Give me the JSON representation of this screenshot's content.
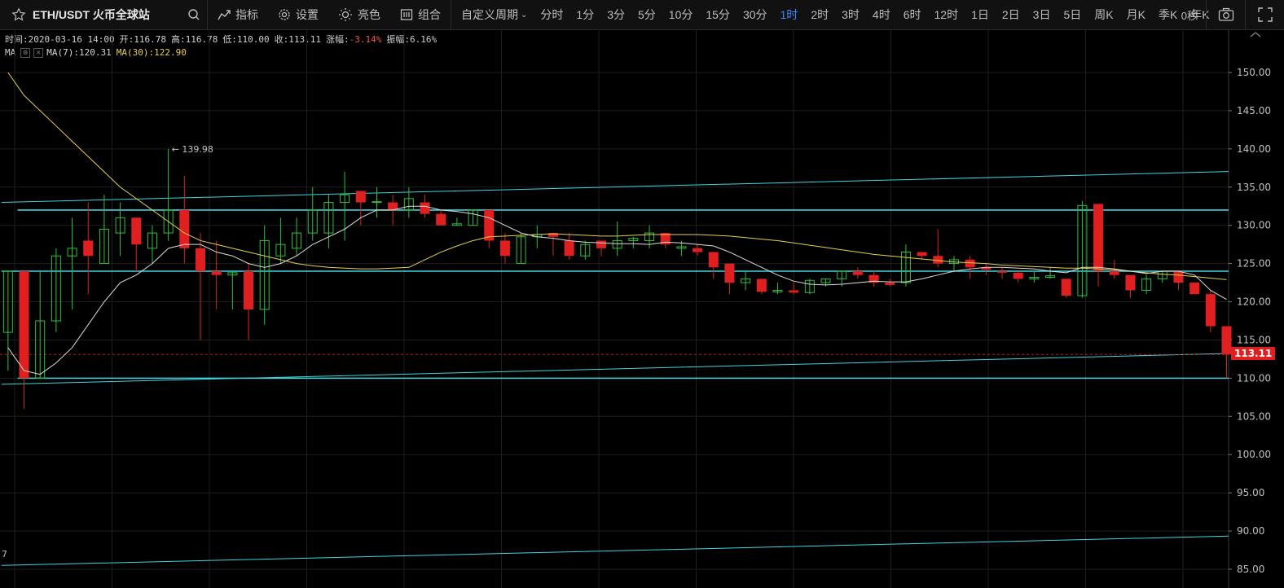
{
  "toolbar": {
    "symbol": "ETH/USDT 火币全球站",
    "indicators_label": "指标",
    "settings_label": "设置",
    "theme_label": "亮色",
    "combo_label": "组合",
    "custom_period_label": "自定义周期",
    "periods": [
      "分时",
      "1分",
      "3分",
      "5分",
      "10分",
      "15分",
      "30分",
      "1时",
      "2时",
      "3时",
      "4时",
      "6时",
      "12时",
      "1日",
      "2日",
      "3日",
      "5日",
      "周K",
      "月K",
      "季K",
      "年K"
    ],
    "active_period": "1时",
    "seconds": "0秒"
  },
  "info": {
    "time": "时间:2020-03-16 14:00",
    "open": "开:116.78",
    "high": "高:116.78",
    "low": "低:110.00",
    "close": "收:113.11",
    "change_label": "涨幅:",
    "change_value": "-3.14%",
    "amplitude": "振幅:6.16%",
    "ma_label": "MA",
    "ma7": "MA(7):120.31",
    "ma30": "MA(30):122.90"
  },
  "colors": {
    "up": "#2fbf3f",
    "down": "#e02020",
    "ma7": "#dcdcdc",
    "ma30": "#e6d14a",
    "trend": "#3fd4e0",
    "active": "#3a8bff"
  },
  "chart_data": {
    "type": "candlestick",
    "y_ticks": [
      "150.00",
      "145.00",
      "140.00",
      "135.00",
      "130.00",
      "125.00",
      "120.00",
      "115.00",
      "110.00",
      "105.00",
      "100.00",
      "95.00",
      "90.00",
      "85.00"
    ],
    "ylim": [
      84,
      154
    ],
    "current_price": "113.11",
    "max_label": "139.98",
    "bottom_left_label": "7",
    "candles": [
      {
        "o": 116,
        "h": 124,
        "l": 111,
        "c": 124
      },
      {
        "o": 124,
        "h": 124,
        "l": 106,
        "c": 110
      },
      {
        "o": 110,
        "h": 124,
        "l": 110,
        "c": 117.5
      },
      {
        "o": 117.5,
        "h": 127,
        "l": 116,
        "c": 126
      },
      {
        "o": 126,
        "h": 131,
        "l": 119,
        "c": 127
      },
      {
        "o": 128,
        "h": 133,
        "l": 121,
        "c": 126
      },
      {
        "o": 125,
        "h": 134,
        "l": 125,
        "c": 129.5
      },
      {
        "o": 129,
        "h": 133,
        "l": 126,
        "c": 131
      },
      {
        "o": 131,
        "h": 131,
        "l": 124,
        "c": 127.5
      },
      {
        "o": 127,
        "h": 130,
        "l": 125,
        "c": 129
      },
      {
        "o": 129,
        "h": 140,
        "l": 128,
        "c": 132
      },
      {
        "o": 132,
        "h": 136.5,
        "l": 125,
        "c": 127
      },
      {
        "o": 127,
        "h": 129,
        "l": 115,
        "c": 124
      },
      {
        "o": 124,
        "h": 128,
        "l": 119,
        "c": 123.5
      },
      {
        "o": 123.5,
        "h": 124,
        "l": 119,
        "c": 123.8
      },
      {
        "o": 124,
        "h": 125,
        "l": 115,
        "c": 119
      },
      {
        "o": 119,
        "h": 130,
        "l": 117,
        "c": 128
      },
      {
        "o": 126,
        "h": 131,
        "l": 125,
        "c": 127.5
      },
      {
        "o": 127,
        "h": 131,
        "l": 126,
        "c": 129
      },
      {
        "o": 129,
        "h": 135,
        "l": 128,
        "c": 132
      },
      {
        "o": 129,
        "h": 134,
        "l": 127,
        "c": 133
      },
      {
        "o": 133,
        "h": 137,
        "l": 128,
        "c": 134
      },
      {
        "o": 134.5,
        "h": 134.5,
        "l": 130,
        "c": 133
      },
      {
        "o": 133,
        "h": 135,
        "l": 131,
        "c": 133.1
      },
      {
        "o": 133,
        "h": 134,
        "l": 130,
        "c": 132
      },
      {
        "o": 132,
        "h": 135,
        "l": 131,
        "c": 133.5
      },
      {
        "o": 133,
        "h": 134,
        "l": 131,
        "c": 131.5
      },
      {
        "o": 131.5,
        "h": 132,
        "l": 130,
        "c": 130
      },
      {
        "o": 130,
        "h": 131,
        "l": 130,
        "c": 130.2
      },
      {
        "o": 130,
        "h": 132,
        "l": 130,
        "c": 132
      },
      {
        "o": 132,
        "h": 132,
        "l": 127,
        "c": 128
      },
      {
        "o": 128,
        "h": 129,
        "l": 125,
        "c": 126
      },
      {
        "o": 125,
        "h": 129,
        "l": 125,
        "c": 128.5
      },
      {
        "o": 128.5,
        "h": 130,
        "l": 127,
        "c": 128.8
      },
      {
        "o": 129,
        "h": 129,
        "l": 126,
        "c": 128.5
      },
      {
        "o": 128,
        "h": 129,
        "l": 125.5,
        "c": 126
      },
      {
        "o": 126,
        "h": 128,
        "l": 125.5,
        "c": 127.5
      },
      {
        "o": 128,
        "h": 128,
        "l": 126,
        "c": 127
      },
      {
        "o": 127,
        "h": 130.5,
        "l": 126,
        "c": 128
      },
      {
        "o": 128,
        "h": 128.5,
        "l": 127,
        "c": 128.3
      },
      {
        "o": 128,
        "h": 130,
        "l": 127,
        "c": 129
      },
      {
        "o": 129,
        "h": 129,
        "l": 127,
        "c": 127.5
      },
      {
        "o": 127,
        "h": 128,
        "l": 126,
        "c": 127.2
      },
      {
        "o": 127,
        "h": 127.5,
        "l": 126,
        "c": 126.5
      },
      {
        "o": 126.5,
        "h": 126.5,
        "l": 123,
        "c": 124.5
      },
      {
        "o": 125,
        "h": 125,
        "l": 121,
        "c": 122.5
      },
      {
        "o": 122.5,
        "h": 124,
        "l": 121.5,
        "c": 123
      },
      {
        "o": 123,
        "h": 123,
        "l": 121,
        "c": 121.3
      },
      {
        "o": 121.3,
        "h": 122.5,
        "l": 121,
        "c": 121.5
      },
      {
        "o": 121.5,
        "h": 122.5,
        "l": 121,
        "c": 121.2
      },
      {
        "o": 121.2,
        "h": 123,
        "l": 121,
        "c": 122.8
      },
      {
        "o": 122.5,
        "h": 123,
        "l": 122,
        "c": 123
      },
      {
        "o": 123,
        "h": 124,
        "l": 122,
        "c": 124
      },
      {
        "o": 124,
        "h": 124.5,
        "l": 123,
        "c": 123.5
      },
      {
        "o": 123.5,
        "h": 124,
        "l": 122,
        "c": 122.5
      },
      {
        "o": 122.5,
        "h": 123,
        "l": 122,
        "c": 122.2
      },
      {
        "o": 122.5,
        "h": 127.5,
        "l": 122,
        "c": 126.5
      },
      {
        "o": 126.5,
        "h": 126.5,
        "l": 125.5,
        "c": 126
      },
      {
        "o": 126,
        "h": 129.5,
        "l": 124.5,
        "c": 125
      },
      {
        "o": 125,
        "h": 126,
        "l": 124,
        "c": 125.5
      },
      {
        "o": 125.5,
        "h": 126,
        "l": 123,
        "c": 124.5
      },
      {
        "o": 124.5,
        "h": 125,
        "l": 123.5,
        "c": 124.2
      },
      {
        "o": 124,
        "h": 124.5,
        "l": 123,
        "c": 123.8
      },
      {
        "o": 123.8,
        "h": 124,
        "l": 122.5,
        "c": 123
      },
      {
        "o": 123,
        "h": 124,
        "l": 122.5,
        "c": 123.2
      },
      {
        "o": 123.2,
        "h": 124.5,
        "l": 123,
        "c": 123.4
      },
      {
        "o": 123,
        "h": 123,
        "l": 120.5,
        "c": 120.8
      },
      {
        "o": 120.8,
        "h": 133.2,
        "l": 120.5,
        "c": 132.6
      },
      {
        "o": 132.8,
        "h": 132.8,
        "l": 122,
        "c": 124
      },
      {
        "o": 124,
        "h": 125.5,
        "l": 123,
        "c": 123.5
      },
      {
        "o": 123.5,
        "h": 123.5,
        "l": 120.5,
        "c": 121.5
      },
      {
        "o": 121.5,
        "h": 123.5,
        "l": 121,
        "c": 123
      },
      {
        "o": 123,
        "h": 124,
        "l": 122.5,
        "c": 124
      },
      {
        "o": 124,
        "h": 124,
        "l": 121.5,
        "c": 122.5
      },
      {
        "o": 122.5,
        "h": 122.5,
        "l": 121,
        "c": 121
      },
      {
        "o": 121,
        "h": 121.5,
        "l": 116,
        "c": 116.8
      },
      {
        "o": 116.8,
        "h": 116.8,
        "l": 110,
        "c": 113.11
      }
    ],
    "ma7": [
      114,
      111,
      110.5,
      112,
      114,
      117,
      120,
      122.5,
      123.5,
      125,
      127,
      127.5,
      127.5,
      126.5,
      126,
      125,
      124.5,
      125,
      126,
      127.5,
      128.5,
      129.5,
      131,
      132,
      132,
      132.5,
      132.5,
      132,
      131.8,
      131.5,
      131,
      130,
      129,
      128.5,
      128.3,
      128,
      127.8,
      127.7,
      127.6,
      127.6,
      127.5,
      127.8,
      127.7,
      127.5,
      127.3,
      126.5,
      125.5,
      124.5,
      123.5,
      122.7,
      122.3,
      122.2,
      122.3,
      122.5,
      122.7,
      122.6,
      122.6,
      123,
      123.5,
      124,
      124.3,
      124.5,
      124.5,
      124.4,
      124.3,
      124,
      123.8,
      124.5,
      124.5,
      124.3,
      124,
      123.7,
      124,
      124,
      123.5,
      121.5,
      120.3
    ],
    "ma30": [
      150,
      147,
      145,
      143,
      141,
      139,
      137,
      135,
      133.5,
      132,
      130.5,
      129,
      128,
      127.5,
      127,
      126.5,
      126,
      125.5,
      125,
      124.7,
      124.5,
      124.4,
      124.3,
      124.3,
      124.4,
      124.5,
      125.5,
      126.5,
      127.3,
      128,
      128.5,
      128.6,
      128.7,
      128.8,
      128.9,
      128.8,
      128.7,
      128.6,
      128.6,
      128.7,
      128.8,
      128.8,
      128.8,
      128.8,
      128.7,
      128.6,
      128.4,
      128.2,
      128,
      127.7,
      127.4,
      127.1,
      126.8,
      126.5,
      126.2,
      126,
      125.8,
      125.6,
      125.4,
      125.2,
      125.1,
      125,
      124.8,
      124.7,
      124.6,
      124.5,
      124.4,
      124.4,
      124.3,
      124.2,
      124,
      123.8,
      123.6,
      123.5,
      123.3,
      123.1,
      122.9
    ],
    "trend_lines": [
      {
        "p1": [
          0,
          133
        ],
        "p2": [
          76,
          137
        ]
      },
      {
        "p1": [
          1,
          132
        ],
        "p2": [
          76,
          132
        ]
      },
      {
        "p1": [
          0,
          124
        ],
        "p2": [
          76,
          124
        ]
      },
      {
        "p1": [
          0,
          109.2
        ],
        "p2": [
          76,
          113.2
        ]
      },
      {
        "p1": [
          1,
          110
        ],
        "p2": [
          76,
          110
        ]
      },
      {
        "p1": [
          0,
          85.5
        ],
        "p2": [
          76,
          89.3
        ]
      }
    ]
  }
}
